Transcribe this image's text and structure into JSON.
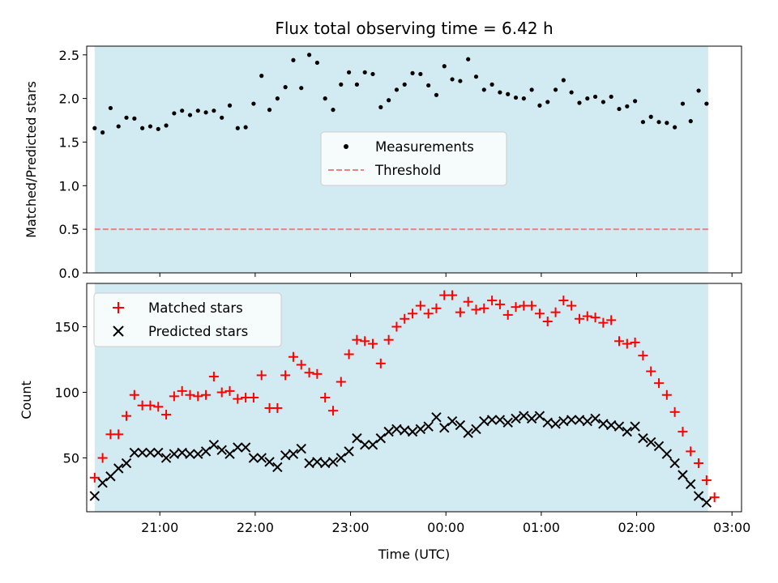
{
  "chart_data": [
    {
      "type": "scatter",
      "title": "Flux total observing time = 6.42 h",
      "ylabel": "Matched/Predicted stars",
      "xlabel": "",
      "x_unit": "hours_utc_continuous",
      "xlim": [
        "20:14",
        "03:06"
      ],
      "ylim": [
        0,
        2.6
      ],
      "yticks": [
        "0.0",
        "0.5",
        "1.0",
        "1.5",
        "2.0",
        "2.5"
      ],
      "xticks": [
        "21:00",
        "22:00",
        "23:00",
        "00:00",
        "01:00",
        "02:00",
        "03:00"
      ],
      "shaded_span": [
        "20:19",
        "02:45"
      ],
      "shade_color": "#add8e6",
      "legend": {
        "position": "center",
        "entries": [
          "Measurements",
          "Threshold"
        ]
      },
      "series": [
        {
          "name": "Measurements",
          "marker": "dot",
          "color": "#000000",
          "x": [
            "20:19",
            "20:24",
            "20:29",
            "20:34",
            "20:39",
            "20:44",
            "20:49",
            "20:54",
            "20:59",
            "21:04",
            "21:09",
            "21:14",
            "21:19",
            "21:24",
            "21:29",
            "21:34",
            "21:39",
            "21:44",
            "21:49",
            "21:54",
            "21:59",
            "22:04",
            "22:09",
            "22:14",
            "22:19",
            "22:24",
            "22:29",
            "22:34",
            "22:39",
            "22:44",
            "22:49",
            "22:54",
            "22:59",
            "23:04",
            "23:09",
            "23:14",
            "23:19",
            "23:24",
            "23:29",
            "23:34",
            "23:39",
            "23:44",
            "23:49",
            "23:54",
            "23:59",
            "00:04",
            "00:09",
            "00:14",
            "00:19",
            "00:24",
            "00:29",
            "00:34",
            "00:39",
            "00:44",
            "00:49",
            "00:54",
            "00:59",
            "01:04",
            "01:09",
            "01:14",
            "01:19",
            "01:24",
            "01:29",
            "01:34",
            "01:39",
            "01:44",
            "01:49",
            "01:54",
            "01:59",
            "02:04",
            "02:09",
            "02:14",
            "02:19",
            "02:24",
            "02:29",
            "02:34",
            "02:39",
            "02:44"
          ],
          "y": [
            1.66,
            1.61,
            1.89,
            1.68,
            1.78,
            1.77,
            1.66,
            1.68,
            1.65,
            1.69,
            1.83,
            1.86,
            1.81,
            1.86,
            1.84,
            1.86,
            1.78,
            1.92,
            1.66,
            1.67,
            1.94,
            2.26,
            1.87,
            2.0,
            2.13,
            2.44,
            2.12,
            2.5,
            2.41,
            2.0,
            1.87,
            2.16,
            2.3,
            2.16,
            2.3,
            2.28,
            1.9,
            1.98,
            2.1,
            2.16,
            2.29,
            2.28,
            2.15,
            2.04,
            2.37,
            2.22,
            2.2,
            2.45,
            2.25,
            2.1,
            2.16,
            2.07,
            2.05,
            2.01,
            2.0,
            2.1,
            1.92,
            1.96,
            2.1,
            2.21,
            2.07,
            1.95,
            2.0,
            2.02,
            1.96,
            2.02,
            1.88,
            1.91,
            1.97,
            1.73,
            1.79,
            1.73,
            1.72,
            1.67,
            1.94,
            1.74,
            2.09,
            1.94
          ]
        },
        {
          "name": "Threshold",
          "marker": "dashed-line",
          "color": "#f08080",
          "x": [
            "20:19",
            "02:45"
          ],
          "y": [
            0.5,
            0.5
          ]
        }
      ]
    },
    {
      "type": "scatter",
      "title": "",
      "ylabel": "Count",
      "xlabel": "Time (UTC)",
      "xlim": [
        "20:14",
        "03:06"
      ],
      "ylim": [
        9,
        183
      ],
      "yticks": [
        "50",
        "100",
        "150"
      ],
      "xticks": [
        "21:00",
        "22:00",
        "23:00",
        "00:00",
        "01:00",
        "02:00",
        "03:00"
      ],
      "shaded_span": [
        "20:19",
        "02:45"
      ],
      "shade_color": "#add8e6",
      "legend": {
        "position": "upper-left",
        "entries": [
          "Matched stars",
          "Predicted stars"
        ]
      },
      "series": [
        {
          "name": "Matched stars",
          "marker": "plus",
          "color": "#ff0000",
          "x": [
            "20:19",
            "20:24",
            "20:29",
            "20:34",
            "20:39",
            "20:44",
            "20:49",
            "20:54",
            "20:59",
            "21:04",
            "21:09",
            "21:14",
            "21:19",
            "21:24",
            "21:29",
            "21:34",
            "21:39",
            "21:44",
            "21:49",
            "21:54",
            "21:59",
            "22:04",
            "22:09",
            "22:14",
            "22:19",
            "22:24",
            "22:29",
            "22:34",
            "22:39",
            "22:44",
            "22:49",
            "22:54",
            "22:59",
            "23:04",
            "23:09",
            "23:14",
            "23:19",
            "23:24",
            "23:29",
            "23:34",
            "23:39",
            "23:44",
            "23:49",
            "23:54",
            "23:59",
            "00:04",
            "00:09",
            "00:14",
            "00:19",
            "00:24",
            "00:29",
            "00:34",
            "00:39",
            "00:44",
            "00:49",
            "00:54",
            "00:59",
            "01:04",
            "01:09",
            "01:14",
            "01:19",
            "01:24",
            "01:29",
            "01:34",
            "01:39",
            "01:44",
            "01:49",
            "01:54",
            "01:59",
            "02:04",
            "02:09",
            "02:14",
            "02:19",
            "02:24",
            "02:29",
            "02:34",
            "02:39",
            "02:44",
            "02:49"
          ],
          "y": [
            35,
            50,
            68,
            68,
            82,
            98,
            90,
            90,
            89,
            83,
            97,
            101,
            98,
            97,
            98,
            112,
            100,
            101,
            95,
            96,
            96,
            113,
            88,
            88,
            113,
            127,
            121,
            115,
            114,
            96,
            86,
            108,
            129,
            140,
            139,
            137,
            122,
            140,
            150,
            156,
            160,
            166,
            160,
            164,
            174,
            174,
            161,
            169,
            163,
            164,
            170,
            167,
            159,
            165,
            166,
            166,
            160,
            154,
            161,
            170,
            166,
            156,
            158,
            157,
            153,
            155,
            139,
            137,
            138,
            128,
            116,
            107,
            98,
            85,
            70,
            55,
            46,
            33,
            20
          ]
        },
        {
          "name": "Predicted stars",
          "marker": "x",
          "color": "#000000",
          "x": [
            "20:19",
            "20:24",
            "20:29",
            "20:34",
            "20:39",
            "20:44",
            "20:49",
            "20:54",
            "20:59",
            "21:04",
            "21:09",
            "21:14",
            "21:19",
            "21:24",
            "21:29",
            "21:34",
            "21:39",
            "21:44",
            "21:49",
            "21:54",
            "21:59",
            "22:04",
            "22:09",
            "22:14",
            "22:19",
            "22:24",
            "22:29",
            "22:34",
            "22:39",
            "22:44",
            "22:49",
            "22:54",
            "22:59",
            "23:04",
            "23:09",
            "23:14",
            "23:19",
            "23:24",
            "23:29",
            "23:34",
            "23:39",
            "23:44",
            "23:49",
            "23:54",
            "23:59",
            "00:04",
            "00:09",
            "00:14",
            "00:19",
            "00:24",
            "00:29",
            "00:34",
            "00:39",
            "00:44",
            "00:49",
            "00:54",
            "00:59",
            "01:04",
            "01:09",
            "01:14",
            "01:19",
            "01:24",
            "01:29",
            "01:34",
            "01:39",
            "01:44",
            "01:49",
            "01:54",
            "01:59",
            "02:04",
            "02:09",
            "02:14",
            "02:19",
            "02:24",
            "02:29",
            "02:34",
            "02:39",
            "02:44"
          ],
          "y": [
            21,
            31,
            36,
            42,
            46,
            54,
            54,
            54,
            54,
            50,
            53,
            54,
            53,
            53,
            55,
            60,
            56,
            53,
            58,
            58,
            50,
            50,
            47,
            43,
            52,
            53,
            57,
            46,
            47,
            46,
            47,
            50,
            55,
            65,
            60,
            60,
            65,
            70,
            72,
            71,
            70,
            72,
            74,
            81,
            73,
            78,
            75,
            69,
            72,
            78,
            79,
            79,
            77,
            80,
            82,
            80,
            82,
            77,
            76,
            78,
            79,
            79,
            78,
            80,
            76,
            75,
            74,
            70,
            74,
            65,
            62,
            59,
            53,
            46,
            37,
            30,
            21,
            16
          ]
        }
      ]
    }
  ]
}
